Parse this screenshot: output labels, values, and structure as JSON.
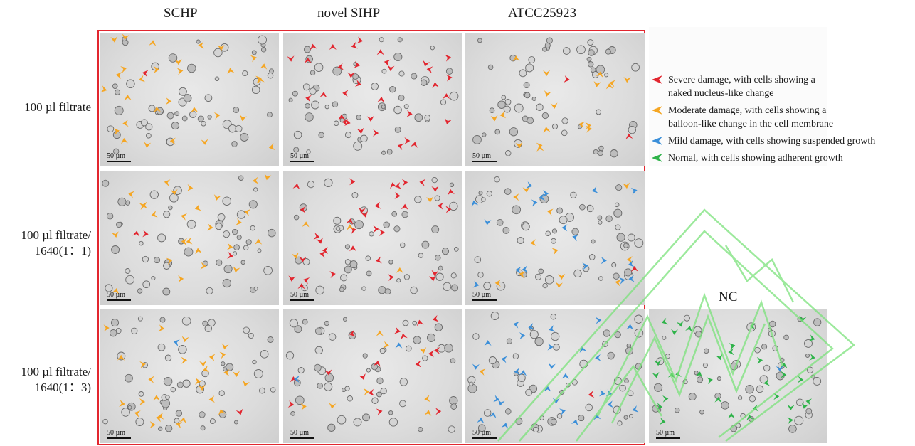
{
  "columns": [
    "SCHP",
    "novel SIHP",
    "ATCC25923"
  ],
  "rows": [
    {
      "lines": [
        "100 µl filtrate"
      ]
    },
    {
      "lines": [
        "100 µl filtrate/",
        "1640(1：1)"
      ]
    },
    {
      "lines": [
        "100 µl filtrate/",
        "1640(1：3)"
      ]
    }
  ],
  "scale_bar": "50 µm",
  "nc_label": "NC",
  "legend": [
    {
      "color": "#e2262f",
      "lines": [
        "Severe damage, with cells showing a",
        "naked nucleus-like change"
      ]
    },
    {
      "color": "#f5a623",
      "lines": [
        "Moderate damage, with cells showing a",
        "balloon-like change in the cell membrane"
      ]
    },
    {
      "color": "#3b8fd9",
      "lines": [
        "Mild damage, with cells showing suspended growth"
      ]
    },
    {
      "color": "#2fb34a",
      "lines": [
        "Nornal, with cells showing adherent growth"
      ]
    }
  ],
  "panel_arrows": {
    "r0c0": {
      "yellow": 30,
      "red": 1
    },
    "r0c1": {
      "red": 34
    },
    "r0c2": {
      "yellow": 18,
      "red": 2
    },
    "r1c0": {
      "yellow": 26,
      "red": 3
    },
    "r1c1": {
      "red": 34,
      "yellow": 5
    },
    "r1c2": {
      "blue": 18,
      "yellow": 12,
      "red": 1
    },
    "r2c0": {
      "yellow": 28,
      "red": 1,
      "blue": 1
    },
    "r2c1": {
      "red": 16,
      "yellow": 8,
      "blue": 2
    },
    "r2c2": {
      "blue": 30,
      "yellow": 1,
      "red": 1
    },
    "nc": {
      "green": 34,
      "blue": 1
    }
  },
  "colors": {
    "red": "#e2262f",
    "yellow": "#f5a623",
    "blue": "#3b8fd9",
    "green": "#2fb34a",
    "frame": "#e2262f",
    "watermark": "#7be27b"
  }
}
